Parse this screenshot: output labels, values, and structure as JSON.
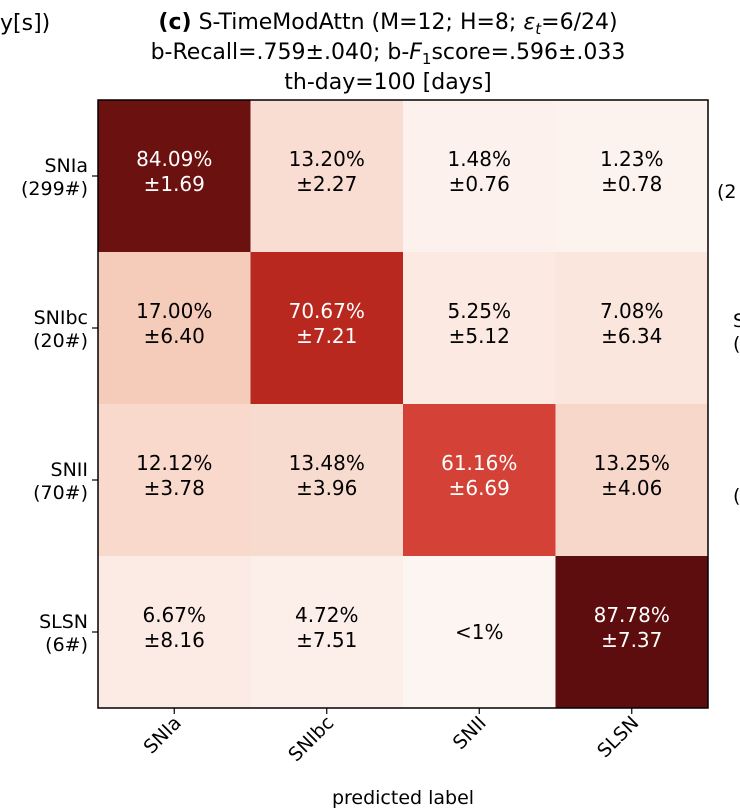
{
  "edge_fragments": {
    "top_left": "y[s])",
    "right_1": "(2",
    "right_2a": "S",
    "right_2b": "(",
    "right_3": "("
  },
  "chart_data": {
    "type": "heatmap",
    "title": {
      "panel": "(c)",
      "line1_rest": " S-TimeModAttn (M=12; H=8; ",
      "line1_eps": "ε",
      "line1_eps_sub": "t",
      "line1_end": "=6/24)",
      "line2_a": "b-Recall=.759±.040; b-",
      "line2_F": "F",
      "line2_sub": "1",
      "line2_b": "score=.596±.033",
      "line3": "th-day=100 [days]"
    },
    "xlabel": "predicted label",
    "x_categories": [
      "SNIa",
      "SNIbc",
      "SNII",
      "SLSN"
    ],
    "y_categories": [
      {
        "name": "SNIa",
        "count": "(299#)"
      },
      {
        "name": "SNIbc",
        "count": "(20#)"
      },
      {
        "name": "SNII",
        "count": "(70#)"
      },
      {
        "name": "SLSN",
        "count": "(6#)"
      }
    ],
    "values": [
      [
        84.09,
        13.2,
        1.48,
        1.23
      ],
      [
        17.0,
        70.67,
        5.25,
        7.08
      ],
      [
        12.12,
        13.48,
        61.16,
        13.25
      ],
      [
        6.67,
        4.72,
        0.5,
        87.78
      ]
    ],
    "labels": [
      [
        {
          "pct": "84.09%",
          "err": "±1.69"
        },
        {
          "pct": "13.20%",
          "err": "±2.27"
        },
        {
          "pct": "1.48%",
          "err": "±0.76"
        },
        {
          "pct": "1.23%",
          "err": "±0.78"
        }
      ],
      [
        {
          "pct": "17.00%",
          "err": "±6.40"
        },
        {
          "pct": "70.67%",
          "err": "±7.21"
        },
        {
          "pct": "5.25%",
          "err": "±5.12"
        },
        {
          "pct": "7.08%",
          "err": "±6.34"
        }
      ],
      [
        {
          "pct": "12.12%",
          "err": "±3.78"
        },
        {
          "pct": "13.48%",
          "err": "±3.96"
        },
        {
          "pct": "61.16%",
          "err": "±6.69"
        },
        {
          "pct": "13.25%",
          "err": "±4.06"
        }
      ],
      [
        {
          "pct": "6.67%",
          "err": "±8.16"
        },
        {
          "pct": "4.72%",
          "err": "±7.51"
        },
        {
          "pct": "<1%",
          "err": ""
        },
        {
          "pct": "87.78%",
          "err": "±7.37"
        }
      ]
    ],
    "colors": [
      [
        "#6b1210",
        "#f9ddd2",
        "#fcf1ed",
        "#fcf2ee"
      ],
      [
        "#f5cbb9",
        "#b8281f",
        "#fbe9e2",
        "#fae6dd"
      ],
      [
        "#f8d9cc",
        "#f8dbcf",
        "#d44237",
        "#f7d7c9"
      ],
      [
        "#fbebe4",
        "#fcefe9",
        "#fdf5f2",
        "#5e0d0f"
      ]
    ],
    "text_colors": [
      [
        "#ffffff",
        "#000000",
        "#000000",
        "#000000"
      ],
      [
        "#000000",
        "#ffffff",
        "#000000",
        "#000000"
      ],
      [
        "#000000",
        "#000000",
        "#ffffff",
        "#000000"
      ],
      [
        "#000000",
        "#000000",
        "#000000",
        "#ffffff"
      ]
    ],
    "colormap": "Reds"
  }
}
